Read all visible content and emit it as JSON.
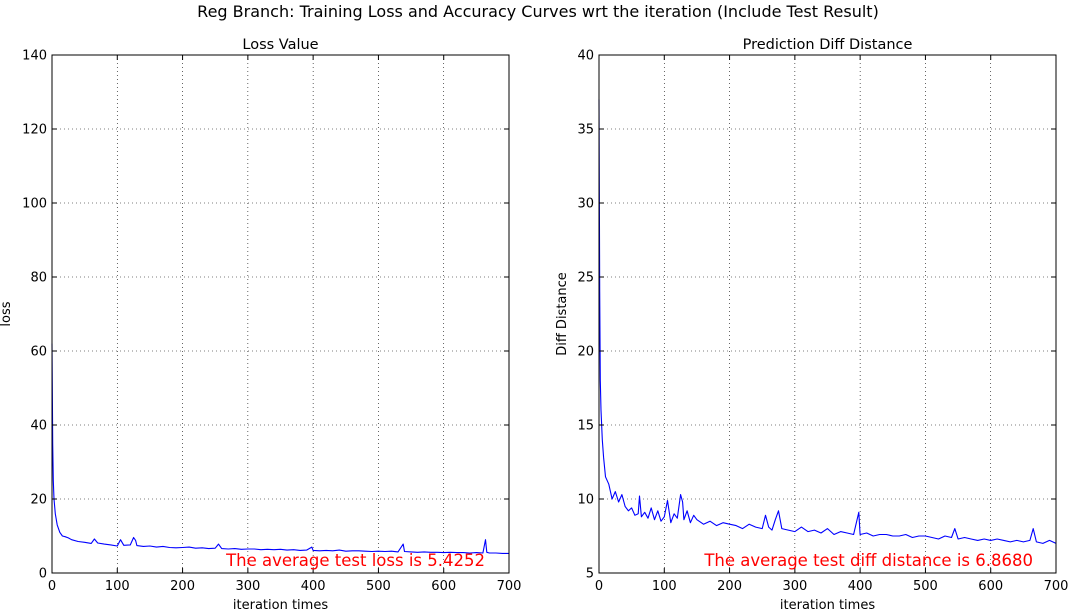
{
  "figure": {
    "suptitle": "Reg Branch: Training Loss and Accuracy Curves wrt the iteration (Include Test Result)"
  },
  "chart_data": [
    {
      "type": "line",
      "title": "Loss Value",
      "xlabel": "iteration times",
      "ylabel": "loss",
      "xlim": [
        0,
        700
      ],
      "ylim": [
        0,
        140
      ],
      "xticks": [
        0,
        100,
        200,
        300,
        400,
        500,
        600,
        700
      ],
      "yticks": [
        0,
        20,
        40,
        60,
        80,
        100,
        120,
        140
      ],
      "grid": true,
      "series": [
        {
          "color": "#0000ff",
          "x": [
            0,
            1,
            2,
            3,
            5,
            8,
            12,
            16,
            20,
            25,
            30,
            40,
            50,
            60,
            65,
            70,
            80,
            90,
            100,
            105,
            110,
            120,
            125,
            128,
            130,
            140,
            150,
            160,
            170,
            180,
            190,
            200,
            210,
            220,
            230,
            240,
            250,
            255,
            260,
            270,
            280,
            290,
            300,
            310,
            320,
            330,
            340,
            350,
            360,
            370,
            380,
            390,
            398,
            400,
            410,
            420,
            430,
            440,
            450,
            460,
            470,
            480,
            490,
            500,
            510,
            520,
            530,
            538,
            540,
            550,
            560,
            570,
            580,
            590,
            600,
            610,
            620,
            630,
            640,
            650,
            660,
            664,
            666,
            670,
            680,
            690,
            700
          ],
          "y": [
            62,
            35,
            25,
            20,
            16,
            13,
            11,
            10,
            9.8,
            9.5,
            9.0,
            8.5,
            8.3,
            8.0,
            9.2,
            8.1,
            7.8,
            7.6,
            7.3,
            9.0,
            7.5,
            7.6,
            9.6,
            8.8,
            7.4,
            7.2,
            7.3,
            7.0,
            7.2,
            6.9,
            6.8,
            6.9,
            7.0,
            6.7,
            6.8,
            6.6,
            6.7,
            7.8,
            6.6,
            6.5,
            6.6,
            6.4,
            6.5,
            6.5,
            6.3,
            6.4,
            6.3,
            6.4,
            6.2,
            6.3,
            6.1,
            6.2,
            7.0,
            6.1,
            6.0,
            6.1,
            6.0,
            6.2,
            5.9,
            6.0,
            6.0,
            5.9,
            5.8,
            5.9,
            5.8,
            5.9,
            5.7,
            7.8,
            5.8,
            5.7,
            5.6,
            5.7,
            5.6,
            5.6,
            5.5,
            5.6,
            5.5,
            5.5,
            5.4,
            5.5,
            5.4,
            9.0,
            5.6,
            5.4,
            5.4,
            5.3,
            5.3
          ]
        }
      ],
      "annotation": "The average test loss is 5.4252",
      "annotation_color": "#ff0000"
    },
    {
      "type": "line",
      "title": "Prediction Diff Distance",
      "xlabel": "iteration times",
      "ylabel": "Diff Distance",
      "xlim": [
        0,
        700
      ],
      "ylim": [
        5,
        40
      ],
      "xticks": [
        0,
        100,
        200,
        300,
        400,
        500,
        600,
        700
      ],
      "yticks": [
        5,
        10,
        15,
        20,
        25,
        30,
        35,
        40
      ],
      "grid": true,
      "series": [
        {
          "color": "#0000ff",
          "x": [
            0,
            1,
            2,
            3,
            5,
            7,
            10,
            15,
            20,
            25,
            30,
            35,
            40,
            45,
            50,
            55,
            60,
            62,
            65,
            70,
            75,
            80,
            85,
            90,
            95,
            100,
            105,
            110,
            115,
            120,
            125,
            128,
            130,
            135,
            140,
            145,
            150,
            160,
            170,
            180,
            190,
            200,
            210,
            220,
            230,
            240,
            250,
            255,
            260,
            265,
            270,
            275,
            280,
            290,
            300,
            310,
            320,
            330,
            340,
            350,
            360,
            370,
            380,
            390,
            398,
            400,
            410,
            420,
            430,
            440,
            450,
            460,
            470,
            480,
            490,
            500,
            510,
            520,
            530,
            540,
            545,
            550,
            560,
            570,
            580,
            590,
            600,
            610,
            620,
            630,
            640,
            650,
            660,
            665,
            670,
            680,
            690,
            700
          ],
          "y": [
            37,
            24,
            18,
            16,
            14,
            12.8,
            11.5,
            11.0,
            10.0,
            10.5,
            9.8,
            10.3,
            9.5,
            9.2,
            9.4,
            8.9,
            9.0,
            10.2,
            8.8,
            9.1,
            8.7,
            9.4,
            8.6,
            9.2,
            8.5,
            8.8,
            9.9,
            8.4,
            9.0,
            8.7,
            10.3,
            9.8,
            8.6,
            9.2,
            8.4,
            8.9,
            8.6,
            8.3,
            8.5,
            8.2,
            8.4,
            8.3,
            8.2,
            8.0,
            8.3,
            8.1,
            8.0,
            8.9,
            8.1,
            7.9,
            8.6,
            9.2,
            8.0,
            7.9,
            7.8,
            8.1,
            7.8,
            7.9,
            7.7,
            8.0,
            7.6,
            7.8,
            7.7,
            7.6,
            9.1,
            7.6,
            7.7,
            7.5,
            7.6,
            7.6,
            7.5,
            7.5,
            7.6,
            7.4,
            7.5,
            7.5,
            7.4,
            7.3,
            7.5,
            7.4,
            8.0,
            7.3,
            7.4,
            7.3,
            7.2,
            7.3,
            7.2,
            7.3,
            7.2,
            7.1,
            7.2,
            7.1,
            7.2,
            8.0,
            7.1,
            7.0,
            7.2,
            7.0
          ]
        }
      ],
      "annotation": "The average test diff distance is 6.8680",
      "annotation_color": "#ff0000"
    }
  ]
}
